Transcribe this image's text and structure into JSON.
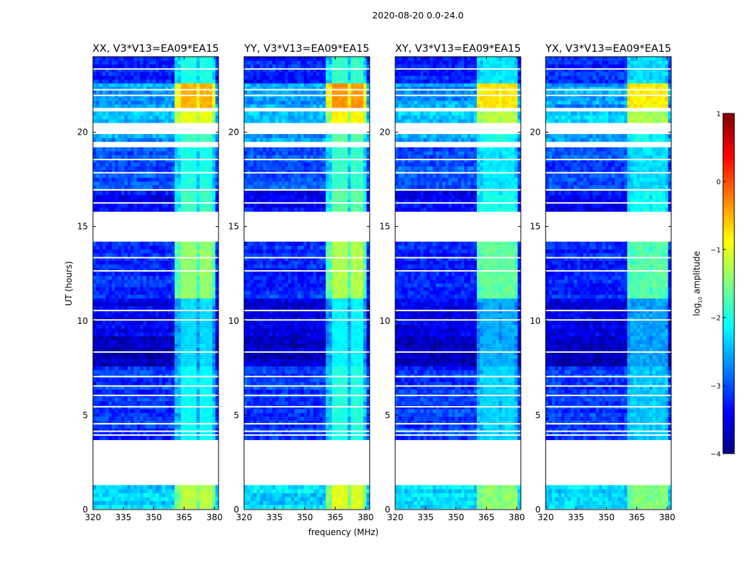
{
  "chart_data": {
    "type": "heatmap",
    "suptitle": "2020-08-20 0.0-24.0",
    "xlabel": "frequency (MHz)",
    "ylabel": "UT (hours)",
    "xlim": [
      320,
      382
    ],
    "ylim": [
      0,
      24
    ],
    "xticks": [
      320,
      335,
      350,
      365,
      380
    ],
    "yticks": [
      0,
      5,
      10,
      15,
      20
    ],
    "panels": [
      {
        "title": "XX, V3*V13=EA09*EA15",
        "strong_boost": 0
      },
      {
        "title": "YY, V3*V13=EA09*EA15",
        "strong_boost": 0.15
      },
      {
        "title": "XY, V3*V13=EA09*EA15",
        "strong_boost": -0.25
      },
      {
        "title": "YX, V3*V13=EA09*EA15",
        "strong_boost": -0.35
      }
    ],
    "rfi_band_mhz": [
      361,
      380
    ],
    "rfi_channels_mhz": [
      [
        364,
        367.5
      ],
      [
        368.5,
        371.5
      ],
      [
        372.5,
        375.5
      ],
      [
        376.5,
        379.5
      ]
    ],
    "data_segments_ut": [
      {
        "t0": 0.05,
        "t1": 1.3,
        "level": -2.3,
        "rfi": -1.2
      },
      {
        "t0": 3.7,
        "t1": 7.6,
        "level": -3.1,
        "rfi": -2.1
      },
      {
        "t0": 7.6,
        "t1": 9.2,
        "level": -3.7,
        "rfi": -2.3
      },
      {
        "t0": 9.2,
        "t1": 11.2,
        "level": -3.5,
        "rfi": -2.3
      },
      {
        "t0": 11.2,
        "t1": 14.2,
        "level": -3.2,
        "rfi": -1.4
      },
      {
        "t0": 15.8,
        "t1": 16.9,
        "level": -3.4,
        "rfi": -1.8
      },
      {
        "t0": 17.0,
        "t1": 19.2,
        "level": -3.0,
        "rfi": -2.0
      },
      {
        "t0": 19.5,
        "t1": 19.9,
        "level": -2.6,
        "rfi": -1.8
      },
      {
        "t0": 20.5,
        "t1": 21.1,
        "level": -2.4,
        "rfi": -1.0
      },
      {
        "t0": 21.3,
        "t1": 22.6,
        "level": -2.6,
        "rfi": -0.5
      },
      {
        "t0": 22.6,
        "t1": 24.0,
        "level": -3.2,
        "rfi": -2.0
      }
    ],
    "flagged_rows_ut": [
      3.95,
      4.15,
      4.55,
      5.45,
      6.05,
      6.55,
      7.05,
      8.35,
      10.05,
      10.55,
      12.65,
      13.35,
      16.25,
      17.85,
      18.55,
      21.95,
      22.25,
      23.35
    ],
    "colorbar": {
      "label": "log10 amplitude",
      "label_main": "log",
      "label_sub": "10",
      "label_rest": " amplitude",
      "vmin": -4,
      "vmax": 1,
      "ticks": [
        -4,
        -3,
        -2,
        -1,
        0,
        1
      ],
      "tick_labels": [
        "−4",
        "−3",
        "−2",
        "−1",
        "0",
        "1"
      ]
    }
  }
}
